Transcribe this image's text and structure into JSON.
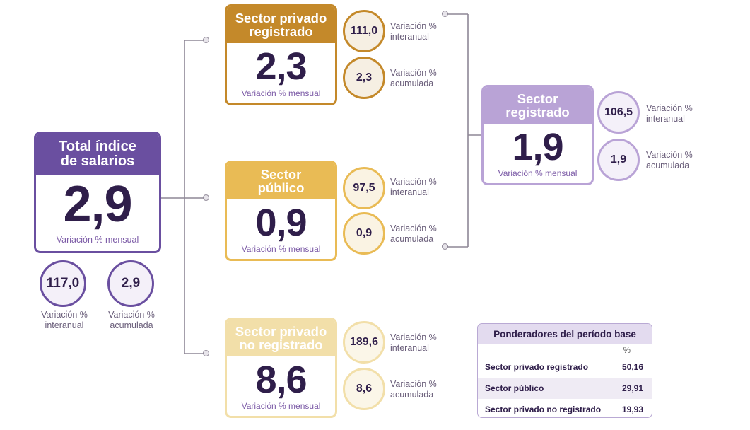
{
  "total": {
    "title": "Total índice\nde salarios",
    "value": "2,9",
    "caption": "Variación % mensual",
    "interanual": "117,0",
    "acumulada": "2,9",
    "label_interanual": "Variación %\ninteranual",
    "label_acumulada": "Variación %\nacumulada",
    "color": "#6a4fa0"
  },
  "privado_registrado": {
    "title": "Sector privado\nregistrado",
    "value": "2,3",
    "caption": "Variación % mensual",
    "interanual": "111,0",
    "acumulada": "2,3",
    "label_interanual": "Variación %\ninteranual",
    "label_acumulada": "Variación %\nacumulada",
    "color": "#c4892a"
  },
  "publico": {
    "title": "Sector\npúblico",
    "value": "0,9",
    "caption": "Variación % mensual",
    "interanual": "97,5",
    "acumulada": "0,9",
    "label_interanual": "Variación %\ninteranual",
    "label_acumulada": "Variación %\nacumulada",
    "color": "#e9bb55"
  },
  "privado_no_registrado": {
    "title": "Sector privado\nno registrado",
    "value": "8,6",
    "caption": "Variación % mensual",
    "interanual": "189,6",
    "acumulada": "8,6",
    "label_interanual": "Variación %\ninteranual",
    "label_acumulada": "Variación %\nacumulada",
    "color": "#f2dfa9"
  },
  "registrado": {
    "title": "Sector\nregistrado",
    "value": "1,9",
    "caption": "Variación % mensual",
    "interanual": "106,5",
    "acumulada": "1,9",
    "label_interanual": "Variación %\ninteranual",
    "label_acumulada": "Variación %\nacumulada",
    "color": "#b9a3d6"
  },
  "ponderadores": {
    "title": "Ponderadores del período base",
    "unit": "%",
    "rows": [
      {
        "label": "Sector privado registrado",
        "value": "50,16"
      },
      {
        "label": "Sector público",
        "value": "29,91"
      },
      {
        "label": "Sector privado no registrado",
        "value": "19,93"
      }
    ]
  },
  "colors": {
    "circle_fill": "#f6efe3",
    "connector": "#8e8796",
    "value_text": "#2f1e4a",
    "caption_text": "#7b5aa6"
  }
}
